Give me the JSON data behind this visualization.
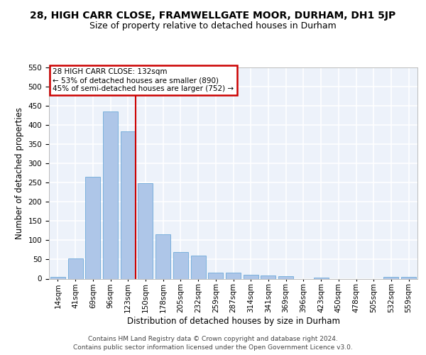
{
  "title": "28, HIGH CARR CLOSE, FRAMWELLGATE MOOR, DURHAM, DH1 5JP",
  "subtitle": "Size of property relative to detached houses in Durham",
  "xlabel": "Distribution of detached houses by size in Durham",
  "ylabel": "Number of detached properties",
  "categories": [
    "14sqm",
    "41sqm",
    "69sqm",
    "96sqm",
    "123sqm",
    "150sqm",
    "178sqm",
    "205sqm",
    "232sqm",
    "259sqm",
    "287sqm",
    "314sqm",
    "341sqm",
    "369sqm",
    "396sqm",
    "423sqm",
    "450sqm",
    "478sqm",
    "505sqm",
    "532sqm",
    "559sqm"
  ],
  "values": [
    4,
    52,
    265,
    435,
    383,
    248,
    115,
    70,
    60,
    15,
    15,
    11,
    8,
    6,
    0,
    3,
    0,
    0,
    0,
    5,
    5
  ],
  "bar_color": "#aec6e8",
  "bar_edge_color": "#5a9fd4",
  "vline_color": "#cc0000",
  "annotation_text": "28 HIGH CARR CLOSE: 132sqm\n← 53% of detached houses are smaller (890)\n45% of semi-detached houses are larger (752) →",
  "annotation_box_color": "#ffffff",
  "annotation_box_edge": "#cc0000",
  "ylim": [
    0,
    550
  ],
  "yticks": [
    0,
    50,
    100,
    150,
    200,
    250,
    300,
    350,
    400,
    450,
    500,
    550
  ],
  "footer": "Contains HM Land Registry data © Crown copyright and database right 2024.\nContains public sector information licensed under the Open Government Licence v3.0.",
  "bg_color": "#edf2fa",
  "grid_color": "#ffffff",
  "title_fontsize": 10,
  "subtitle_fontsize": 9,
  "axis_label_fontsize": 8.5,
  "tick_fontsize": 7.5,
  "footer_fontsize": 6.5,
  "ann_fontsize": 7.5
}
